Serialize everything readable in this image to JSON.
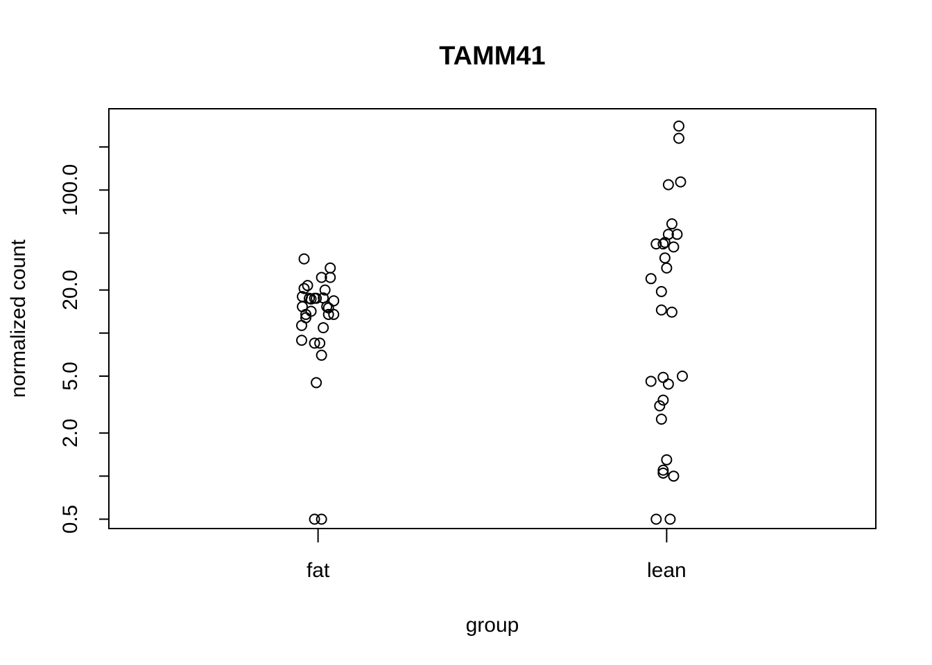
{
  "chart_data": {
    "type": "scatter",
    "title": "TAMM41",
    "xlabel": "group",
    "ylabel": "normalized count",
    "categories": [
      "fat",
      "lean"
    ],
    "y_scale": "log",
    "ylim": [
      0.43,
      370
    ],
    "y_ticks": [
      0.5,
      1,
      2,
      5,
      10,
      20,
      50,
      100,
      200
    ],
    "y_tick_labels": [
      "0.5",
      "",
      "2.0",
      "5.0",
      "",
      "20.0",
      "",
      "100.0",
      ""
    ],
    "grid": false,
    "legend": "none",
    "series": [
      {
        "category": "fat",
        "points": [
          {
            "j": -0.04,
            "y": 33.0
          },
          {
            "j": 0.035,
            "y": 28.5
          },
          {
            "j": 0.01,
            "y": 24.5
          },
          {
            "j": 0.035,
            "y": 24.5
          },
          {
            "j": -0.03,
            "y": 21.5
          },
          {
            "j": -0.04,
            "y": 20.5
          },
          {
            "j": 0.02,
            "y": 20.0
          },
          {
            "j": -0.045,
            "y": 18.0
          },
          {
            "j": -0.025,
            "y": 17.5
          },
          {
            "j": -0.01,
            "y": 17.5
          },
          {
            "j": -0.02,
            "y": 17.3
          },
          {
            "j": 0.015,
            "y": 17.6
          },
          {
            "j": -0.005,
            "y": 17.5
          },
          {
            "j": 0.045,
            "y": 16.8
          },
          {
            "j": -0.045,
            "y": 15.3
          },
          {
            "j": 0.025,
            "y": 15.3
          },
          {
            "j": 0.03,
            "y": 15.0
          },
          {
            "j": -0.02,
            "y": 14.2
          },
          {
            "j": -0.035,
            "y": 13.5
          },
          {
            "j": 0.03,
            "y": 13.5
          },
          {
            "j": 0.045,
            "y": 13.5
          },
          {
            "j": -0.035,
            "y": 12.8
          },
          {
            "j": -0.047,
            "y": 11.3
          },
          {
            "j": 0.015,
            "y": 10.9
          },
          {
            "j": -0.047,
            "y": 8.9
          },
          {
            "j": -0.01,
            "y": 8.5
          },
          {
            "j": 0.005,
            "y": 8.5
          },
          {
            "j": 0.01,
            "y": 7.0
          },
          {
            "j": -0.005,
            "y": 4.5
          },
          {
            "j": -0.01,
            "y": 0.5
          },
          {
            "j": 0.01,
            "y": 0.5
          }
        ]
      },
      {
        "category": "lean",
        "points": [
          {
            "j": 0.035,
            "y": 280.0
          },
          {
            "j": 0.035,
            "y": 230.0
          },
          {
            "j": 0.04,
            "y": 114.0
          },
          {
            "j": 0.005,
            "y": 109.0
          },
          {
            "j": 0.015,
            "y": 58.0
          },
          {
            "j": 0.005,
            "y": 49.0
          },
          {
            "j": 0.03,
            "y": 49.0
          },
          {
            "j": -0.03,
            "y": 42.0
          },
          {
            "j": -0.01,
            "y": 42.0
          },
          {
            "j": -0.005,
            "y": 43.0
          },
          {
            "j": 0.02,
            "y": 40.0
          },
          {
            "j": -0.005,
            "y": 33.5
          },
          {
            "j": 0.0,
            "y": 28.5
          },
          {
            "j": -0.045,
            "y": 24.0
          },
          {
            "j": -0.015,
            "y": 19.5
          },
          {
            "j": -0.015,
            "y": 14.5
          },
          {
            "j": 0.015,
            "y": 14.0
          },
          {
            "j": 0.045,
            "y": 5.0
          },
          {
            "j": -0.01,
            "y": 4.9
          },
          {
            "j": -0.045,
            "y": 4.6
          },
          {
            "j": 0.005,
            "y": 4.4
          },
          {
            "j": -0.01,
            "y": 3.4
          },
          {
            "j": -0.02,
            "y": 3.1
          },
          {
            "j": -0.015,
            "y": 2.5
          },
          {
            "j": 0.0,
            "y": 1.3
          },
          {
            "j": -0.01,
            "y": 1.1
          },
          {
            "j": -0.01,
            "y": 1.05
          },
          {
            "j": 0.02,
            "y": 1.0
          },
          {
            "j": -0.03,
            "y": 0.5
          },
          {
            "j": 0.01,
            "y": 0.5
          }
        ]
      }
    ]
  }
}
